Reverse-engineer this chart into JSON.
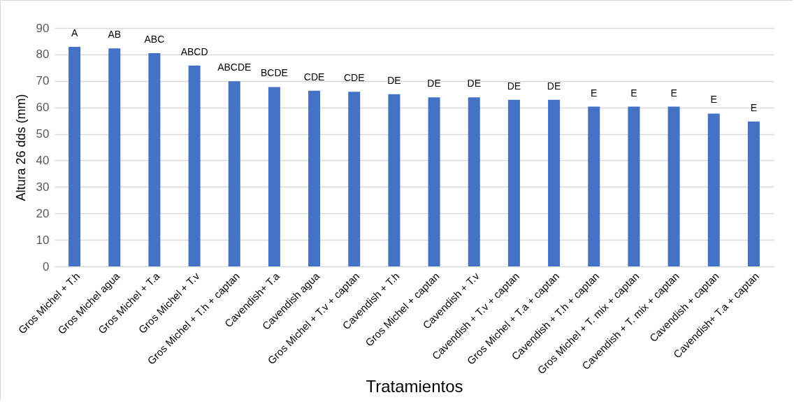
{
  "chart_data": {
    "type": "bar",
    "xlabel": "Tratamientos",
    "ylabel": "Altura 26 dds (mm)",
    "categories": [
      "Gros Michel + T.h",
      "Gros Michel agua",
      "Gros Michel + T.a",
      "Gros Michel + T.v",
      "Gros Michel + T.h + captan",
      "Cavendish+ T.a",
      "Cavendish agua",
      "Gros Michel + T.v + captan",
      "Cavendish + T.h",
      "Gros Michel + captan",
      "Cavendish + T.v",
      "Cavendish + T.v + captan",
      "Gros Michel + T.a + captan",
      "Cavendish + T.h + captan",
      "Gros Michel + T. mix + captan",
      "Cavendish + T. mix + captan",
      "Cavendish + captan",
      "Cavendish+ T.a + captan"
    ],
    "values": [
      82.9,
      82.3,
      80.5,
      75.8,
      69.9,
      67.7,
      66.3,
      65.9,
      65.0,
      63.8,
      63.8,
      62.9,
      62.9,
      60.3,
      60.3,
      60.3,
      57.7,
      54.7
    ],
    "value_labels": [
      "A",
      "AB",
      "ABC",
      "ABCD",
      "ABCDE",
      "BCDE",
      "CDE",
      "CDE",
      "DE",
      "DE",
      "DE",
      "DE",
      "DE",
      "E",
      "E",
      "E",
      "E",
      "E"
    ],
    "color": "#4472c4",
    "ylim": [
      0,
      90
    ],
    "yticks": [
      0,
      10,
      20,
      30,
      40,
      50,
      60,
      70,
      80,
      90
    ],
    "grid": "y"
  }
}
